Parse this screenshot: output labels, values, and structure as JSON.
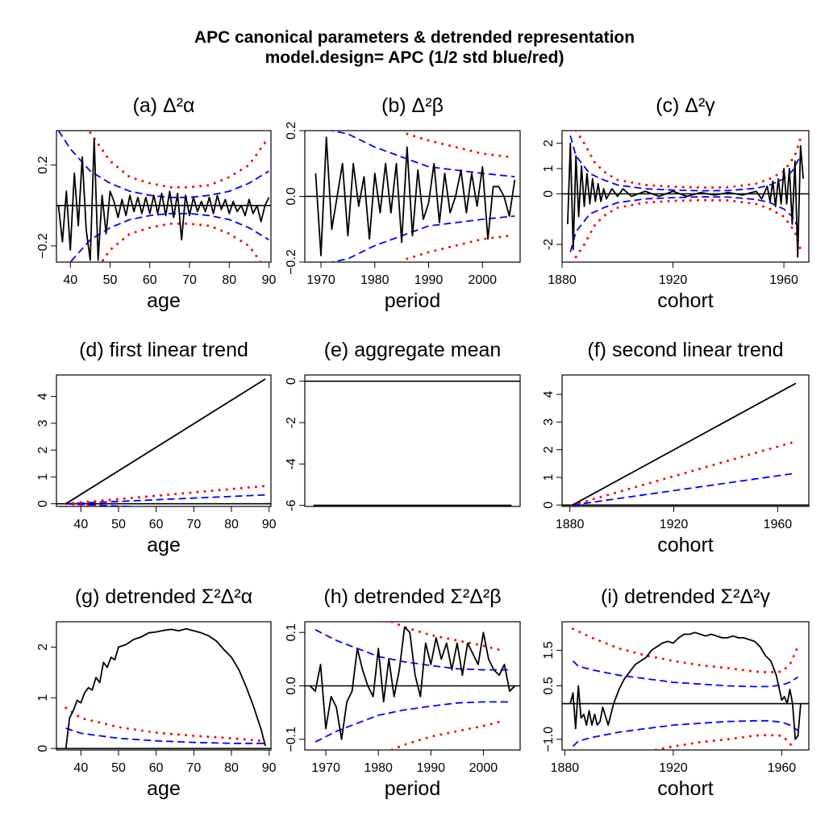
{
  "figure": {
    "title_line1": "APC canonical parameters & detrended representation",
    "title_line2": "model.design= APC (1/2 std blue/red)"
  },
  "colors": {
    "estimate": "#000000",
    "half_std": "#0000ff",
    "std": "#ff0000",
    "axis": "#000000"
  },
  "chart_data": [
    {
      "id": "a",
      "type": "line",
      "label": "(a)",
      "title_text": "Δ²α",
      "xlabel": "age",
      "ylabel": "",
      "xlim": [
        36.5,
        90.5
      ],
      "ylim": [
        -0.28,
        0.37
      ],
      "xticks": [
        40,
        50,
        60,
        70,
        80,
        90
      ],
      "yticks": [
        -0.2,
        0.2
      ],
      "hline": 0,
      "x": [
        37,
        38,
        39,
        40,
        41,
        42,
        43,
        44,
        45,
        46,
        47,
        48,
        49,
        50,
        51,
        52,
        53,
        54,
        55,
        56,
        57,
        58,
        59,
        60,
        61,
        62,
        63,
        64,
        65,
        66,
        67,
        68,
        69,
        70,
        71,
        72,
        73,
        74,
        75,
        76,
        77,
        78,
        79,
        80,
        81,
        82,
        83,
        84,
        85,
        86,
        87,
        88,
        89,
        90
      ],
      "values": [
        0.0,
        -0.18,
        0.07,
        -0.22,
        0.16,
        -0.1,
        0.24,
        -0.12,
        -0.27,
        0.33,
        -0.27,
        0.05,
        -0.14,
        0.07,
        0.02,
        -0.06,
        0.03,
        -0.05,
        0.05,
        -0.03,
        0.04,
        -0.04,
        0.04,
        -0.04,
        0.05,
        -0.04,
        0.06,
        -0.05,
        0.07,
        -0.06,
        0.06,
        -0.17,
        0.05,
        -0.05,
        0.04,
        -0.03,
        0.02,
        -0.03,
        0.04,
        -0.04,
        0.05,
        -0.02,
        0.03,
        -0.04,
        0.02,
        -0.03,
        0.0,
        -0.05,
        0.03,
        -0.04,
        0.0,
        -0.08,
        0.0,
        0.04
      ],
      "bands": [
        {
          "name": "1/2 std",
          "x": [
            37,
            40,
            45,
            50,
            55,
            60,
            65,
            70,
            75,
            80,
            85,
            90
          ],
          "values": [
            0.37,
            0.28,
            0.17,
            0.11,
            0.07,
            0.05,
            0.04,
            0.04,
            0.05,
            0.07,
            0.11,
            0.17
          ],
          "symmetric": true
        },
        {
          "name": "std",
          "x": [
            45,
            50,
            55,
            60,
            65,
            70,
            75,
            80,
            85,
            89
          ],
          "values": [
            0.36,
            0.22,
            0.14,
            0.11,
            0.09,
            0.09,
            0.1,
            0.14,
            0.2,
            0.31
          ],
          "symmetric": true,
          "dotted": true
        }
      ]
    },
    {
      "id": "b",
      "type": "line",
      "label": "(b)",
      "title_text": "Δ²β",
      "xlabel": "period",
      "ylabel": "",
      "xlim": [
        1967,
        2007
      ],
      "ylim": [
        -0.2,
        0.2
      ],
      "xticks": [
        1970,
        1980,
        1990,
        2000
      ],
      "yticks": [
        -0.2,
        0.0,
        0.2
      ],
      "hline": 0,
      "x": [
        1969,
        1970,
        1971,
        1972,
        1973,
        1974,
        1975,
        1976,
        1977,
        1978,
        1979,
        1980,
        1981,
        1982,
        1983,
        1984,
        1985,
        1986,
        1987,
        1988,
        1989,
        1990,
        1991,
        1992,
        1993,
        1994,
        1995,
        1996,
        1997,
        1998,
        1999,
        2000,
        2001,
        2002,
        2003,
        2004,
        2005,
        2006
      ],
      "values": [
        0.07,
        -0.18,
        0.18,
        -0.1,
        0.0,
        0.1,
        -0.12,
        0.1,
        -0.03,
        0.06,
        -0.13,
        0.07,
        -0.05,
        0.1,
        -0.05,
        0.1,
        -0.14,
        0.15,
        -0.12,
        0.08,
        -0.07,
        -0.02,
        0.1,
        -0.08,
        0.07,
        -0.05,
        0.0,
        0.08,
        -0.05,
        0.07,
        -0.03,
        0.09,
        -0.13,
        0.03,
        0.03,
        0.0,
        -0.06,
        0.05
      ],
      "bands": [
        {
          "name": "1/2 std",
          "x": [
            1969,
            1975,
            1980,
            1985,
            1990,
            1995,
            2000,
            2006
          ],
          "values": [
            0.21,
            0.19,
            0.15,
            0.12,
            0.09,
            0.08,
            0.07,
            0.06
          ],
          "symmetric": true
        },
        {
          "name": "std",
          "x": [
            1986,
            1990,
            1995,
            2000,
            2005
          ],
          "values": [
            0.19,
            0.17,
            0.15,
            0.13,
            0.12
          ],
          "symmetric": true,
          "dotted": true
        }
      ]
    },
    {
      "id": "c",
      "type": "line",
      "label": "(c)",
      "title_text": "Δ²γ",
      "xlabel": "cohort",
      "ylabel": "",
      "xlim": [
        1880,
        1969
      ],
      "ylim": [
        -2.7,
        2.5
      ],
      "xticks": [
        1880,
        1920,
        1960
      ],
      "yticks": [
        -2,
        0,
        1,
        2
      ],
      "hline": 0,
      "x": [
        1882,
        1883,
        1884,
        1885,
        1886,
        1887,
        1888,
        1889,
        1890,
        1891,
        1892,
        1893,
        1894,
        1895,
        1896,
        1898,
        1900,
        1902,
        1905,
        1910,
        1915,
        1920,
        1925,
        1930,
        1935,
        1940,
        1945,
        1950,
        1952,
        1954,
        1955,
        1956,
        1957,
        1958,
        1959,
        1960,
        1961,
        1962,
        1963,
        1964,
        1965,
        1966,
        1967
      ],
      "values": [
        -1.2,
        2.0,
        -2.2,
        1.5,
        -0.9,
        1.1,
        -0.5,
        0.8,
        -0.4,
        0.6,
        -0.3,
        0.4,
        -0.3,
        0.2,
        -0.2,
        0.2,
        -0.1,
        0.2,
        -0.1,
        0.1,
        -0.1,
        0.1,
        -0.1,
        0.05,
        -0.05,
        0.05,
        -0.05,
        0.1,
        -0.2,
        0.3,
        -0.3,
        0.5,
        -0.5,
        0.6,
        -0.4,
        1.0,
        -0.4,
        1.0,
        -1.2,
        1.3,
        -2.5,
        1.9,
        0.6
      ],
      "bands": [
        {
          "name": "1/2 std",
          "x": [
            1883,
            1885,
            1890,
            1895,
            1900,
            1910,
            1920,
            1930,
            1940,
            1950,
            1955,
            1960,
            1963,
            1966
          ],
          "values": [
            2.3,
            1.5,
            0.8,
            0.55,
            0.35,
            0.2,
            0.15,
            0.12,
            0.13,
            0.22,
            0.35,
            0.6,
            0.9,
            1.5
          ],
          "symmetric": true
        },
        {
          "name": "std",
          "x": [
            1885,
            1888,
            1892,
            1896,
            1900,
            1910,
            1920,
            1930,
            1940,
            1950,
            1955,
            1960,
            1964,
            1966
          ],
          "values": [
            2.5,
            2.0,
            1.2,
            0.8,
            0.55,
            0.35,
            0.28,
            0.25,
            0.26,
            0.4,
            0.6,
            0.9,
            1.5,
            2.2
          ],
          "symmetric": true,
          "dotted": true
        }
      ]
    },
    {
      "id": "d",
      "type": "line",
      "label": "(d)",
      "title_text": "first linear trend",
      "xlabel": "age",
      "ylabel": "",
      "xlim": [
        33.5,
        90.5
      ],
      "ylim": [
        -0.1,
        4.8
      ],
      "xticks": [
        40,
        50,
        60,
        70,
        80,
        90
      ],
      "yticks": [
        0,
        1,
        2,
        3,
        4
      ],
      "hline": 0,
      "x": [
        36,
        89
      ],
      "values": [
        0.0,
        4.65
      ],
      "bands": [
        {
          "name": "1/2 std",
          "x": [
            36,
            89
          ],
          "values": [
            0.0,
            0.33
          ],
          "symmetric": true
        },
        {
          "name": "std",
          "x": [
            36,
            89
          ],
          "values": [
            0.0,
            0.66
          ],
          "symmetric": true,
          "dotted": true
        }
      ]
    },
    {
      "id": "e",
      "type": "line",
      "label": "(e)",
      "title_text": "aggregate mean",
      "xlabel": "",
      "ylabel": "",
      "xlim": [
        0,
        1
      ],
      "ylim": [
        -6.05,
        0.3
      ],
      "xticks": [],
      "yticks": [
        -6,
        -4,
        -2,
        0
      ],
      "hline": 0,
      "x": [
        0.04,
        0.96
      ],
      "values": [
        -6.0,
        -6.0
      ],
      "bands": []
    },
    {
      "id": "f",
      "type": "line",
      "label": "(f)",
      "title_text": "second linear trend",
      "xlabel": "cohort",
      "ylabel": "",
      "xlim": [
        1877,
        1972
      ],
      "ylim": [
        -0.05,
        4.7
      ],
      "xticks": [
        1880,
        1920,
        1960
      ],
      "yticks": [
        0,
        1,
        2,
        3,
        4
      ],
      "hline": 0,
      "x": [
        1881,
        1967
      ],
      "values": [
        0.0,
        4.4
      ],
      "bands": [
        {
          "name": "1/2 std",
          "x": [
            1881,
            1967
          ],
          "values": [
            0.0,
            1.15
          ],
          "symmetric": true
        },
        {
          "name": "std",
          "x": [
            1881,
            1967
          ],
          "values": [
            0.0,
            2.3
          ],
          "symmetric": true,
          "dotted": true
        }
      ]
    },
    {
      "id": "g",
      "type": "line",
      "label": "(g)",
      "title_text": "detrended Σ²Δ²α",
      "xlabel": "age",
      "ylabel": "",
      "xlim": [
        33.5,
        90.5
      ],
      "ylim": [
        -0.03,
        2.5
      ],
      "xticks": [
        40,
        50,
        60,
        70,
        80,
        90
      ],
      "yticks": [
        0.0,
        1.0,
        2.0
      ],
      "hline": 0,
      "x": [
        36,
        37,
        38,
        39,
        40,
        41,
        42,
        43,
        44,
        45,
        46,
        47,
        48,
        49,
        50,
        52,
        54,
        56,
        58,
        60,
        62,
        64,
        66,
        68,
        70,
        72,
        74,
        76,
        78,
        80,
        82,
        84,
        86,
        88,
        89
      ],
      "values": [
        0.0,
        0.6,
        0.75,
        0.95,
        0.9,
        1.1,
        1.2,
        1.15,
        1.4,
        1.3,
        1.7,
        1.6,
        1.8,
        1.75,
        2.0,
        2.05,
        2.15,
        2.2,
        2.28,
        2.3,
        2.33,
        2.35,
        2.32,
        2.36,
        2.32,
        2.28,
        2.22,
        2.12,
        1.95,
        1.8,
        1.55,
        1.2,
        0.8,
        0.35,
        0.05
      ],
      "bands": [
        {
          "name": "1/2 std",
          "x": [
            36,
            40,
            50,
            60,
            70,
            80,
            89
          ],
          "values": [
            0.4,
            0.3,
            0.2,
            0.15,
            0.12,
            0.1,
            0.1
          ]
        },
        {
          "name": "std",
          "x": [
            36,
            40,
            50,
            60,
            70,
            80,
            88
          ],
          "values": [
            0.8,
            0.6,
            0.42,
            0.31,
            0.25,
            0.2,
            0.15
          ],
          "dotted": true
        }
      ]
    },
    {
      "id": "h",
      "type": "line",
      "label": "(h)",
      "title_text": "detrended Σ²Δ²β",
      "xlabel": "period",
      "ylabel": "",
      "xlim": [
        1966,
        2007
      ],
      "ylim": [
        -0.12,
        0.12
      ],
      "xticks": [
        1970,
        1980,
        1990,
        2000
      ],
      "yticks": [
        -0.1,
        0.0,
        0.1
      ],
      "hline": 0,
      "x": [
        1967,
        1968,
        1969,
        1970,
        1971,
        1972,
        1973,
        1974,
        1975,
        1976,
        1977,
        1978,
        1979,
        1980,
        1981,
        1982,
        1983,
        1984,
        1985,
        1986,
        1987,
        1988,
        1989,
        1990,
        1991,
        1992,
        1993,
        1994,
        1995,
        1996,
        1997,
        1998,
        1999,
        2000,
        2001,
        2002,
        2003,
        2004,
        2005,
        2006
      ],
      "values": [
        0.0,
        -0.01,
        0.04,
        -0.08,
        -0.02,
        -0.04,
        -0.1,
        -0.03,
        -0.01,
        0.07,
        0.03,
        0.0,
        -0.02,
        0.07,
        -0.03,
        0.05,
        -0.02,
        0.03,
        0.11,
        0.1,
        0.02,
        -0.02,
        0.08,
        0.04,
        0.09,
        0.05,
        0.08,
        0.03,
        0.08,
        0.02,
        0.08,
        0.06,
        0.04,
        0.1,
        0.05,
        0.03,
        0.02,
        0.04,
        -0.01,
        0.0
      ],
      "bands": [
        {
          "name": "1/2 std",
          "x": [
            1968,
            1972,
            1976,
            1980,
            1985,
            1990,
            1995,
            2000,
            2005
          ],
          "values": [
            0.105,
            0.085,
            0.07,
            0.055,
            0.045,
            0.038,
            0.032,
            0.03,
            0.03
          ],
          "symmetric": true
        },
        {
          "name": "std",
          "x": [
            1980,
            1985,
            1990,
            1995,
            2000,
            2004
          ],
          "values": [
            0.13,
            0.11,
            0.095,
            0.085,
            0.075,
            0.065
          ],
          "symmetric": true,
          "dotted": true
        }
      ]
    },
    {
      "id": "i",
      "type": "line",
      "label": "(i)",
      "title_text": "detrended Σ²Δ²γ",
      "xlabel": "cohort",
      "ylabel": "",
      "xlim": [
        1879,
        1970
      ],
      "ylim": [
        -1.3,
        2.3
      ],
      "xticks": [
        1880,
        1920,
        1960
      ],
      "yticks": [
        -1.0,
        0.5,
        1.5
      ],
      "hline": 0,
      "x": [
        1882,
        1883,
        1884,
        1885,
        1886,
        1887,
        1888,
        1889,
        1890,
        1891,
        1892,
        1893,
        1894,
        1896,
        1898,
        1900,
        1902,
        1904,
        1906,
        1908,
        1910,
        1912,
        1914,
        1916,
        1918,
        1920,
        1922,
        1924,
        1926,
        1928,
        1930,
        1932,
        1934,
        1936,
        1938,
        1940,
        1942,
        1944,
        1946,
        1948,
        1950,
        1952,
        1954,
        1956,
        1958,
        1960,
        1961,
        1962,
        1963,
        1964,
        1965,
        1966,
        1967
      ],
      "values": [
        0.0,
        0.3,
        -0.7,
        0.5,
        -0.4,
        -0.3,
        -0.6,
        -0.2,
        -0.6,
        -0.3,
        -0.6,
        -0.5,
        -0.1,
        -0.6,
        0.0,
        0.4,
        0.7,
        0.9,
        1.1,
        1.2,
        1.3,
        1.5,
        1.6,
        1.7,
        1.75,
        1.7,
        1.85,
        1.95,
        1.95,
        2.0,
        1.95,
        1.9,
        1.95,
        1.9,
        1.85,
        1.85,
        1.9,
        1.85,
        1.85,
        1.8,
        1.75,
        1.6,
        1.35,
        1.2,
        0.8,
        0.1,
        0.2,
        0.0,
        0.4,
        0.0,
        -1.0,
        -0.9,
        0.0
      ],
      "bands": [
        {
          "name": "1/2 std",
          "x": [
            1883,
            1885,
            1890,
            1900,
            1910,
            1920,
            1930,
            1940,
            1950,
            1955,
            1960,
            1963,
            1966
          ],
          "values": [
            1.2,
            1.05,
            0.95,
            0.8,
            0.7,
            0.6,
            0.55,
            0.5,
            0.48,
            0.48,
            0.52,
            0.6,
            0.75
          ],
          "symmetric": true
        },
        {
          "name": "std",
          "x": [
            1883,
            1890,
            1900,
            1910,
            1920,
            1930,
            1940,
            1950,
            1955,
            1960,
            1963,
            1966
          ],
          "values": [
            2.1,
            1.85,
            1.55,
            1.35,
            1.2,
            1.08,
            1.0,
            0.9,
            0.88,
            0.9,
            1.1,
            1.6
          ],
          "symmetric": true,
          "dotted": true
        }
      ]
    }
  ]
}
